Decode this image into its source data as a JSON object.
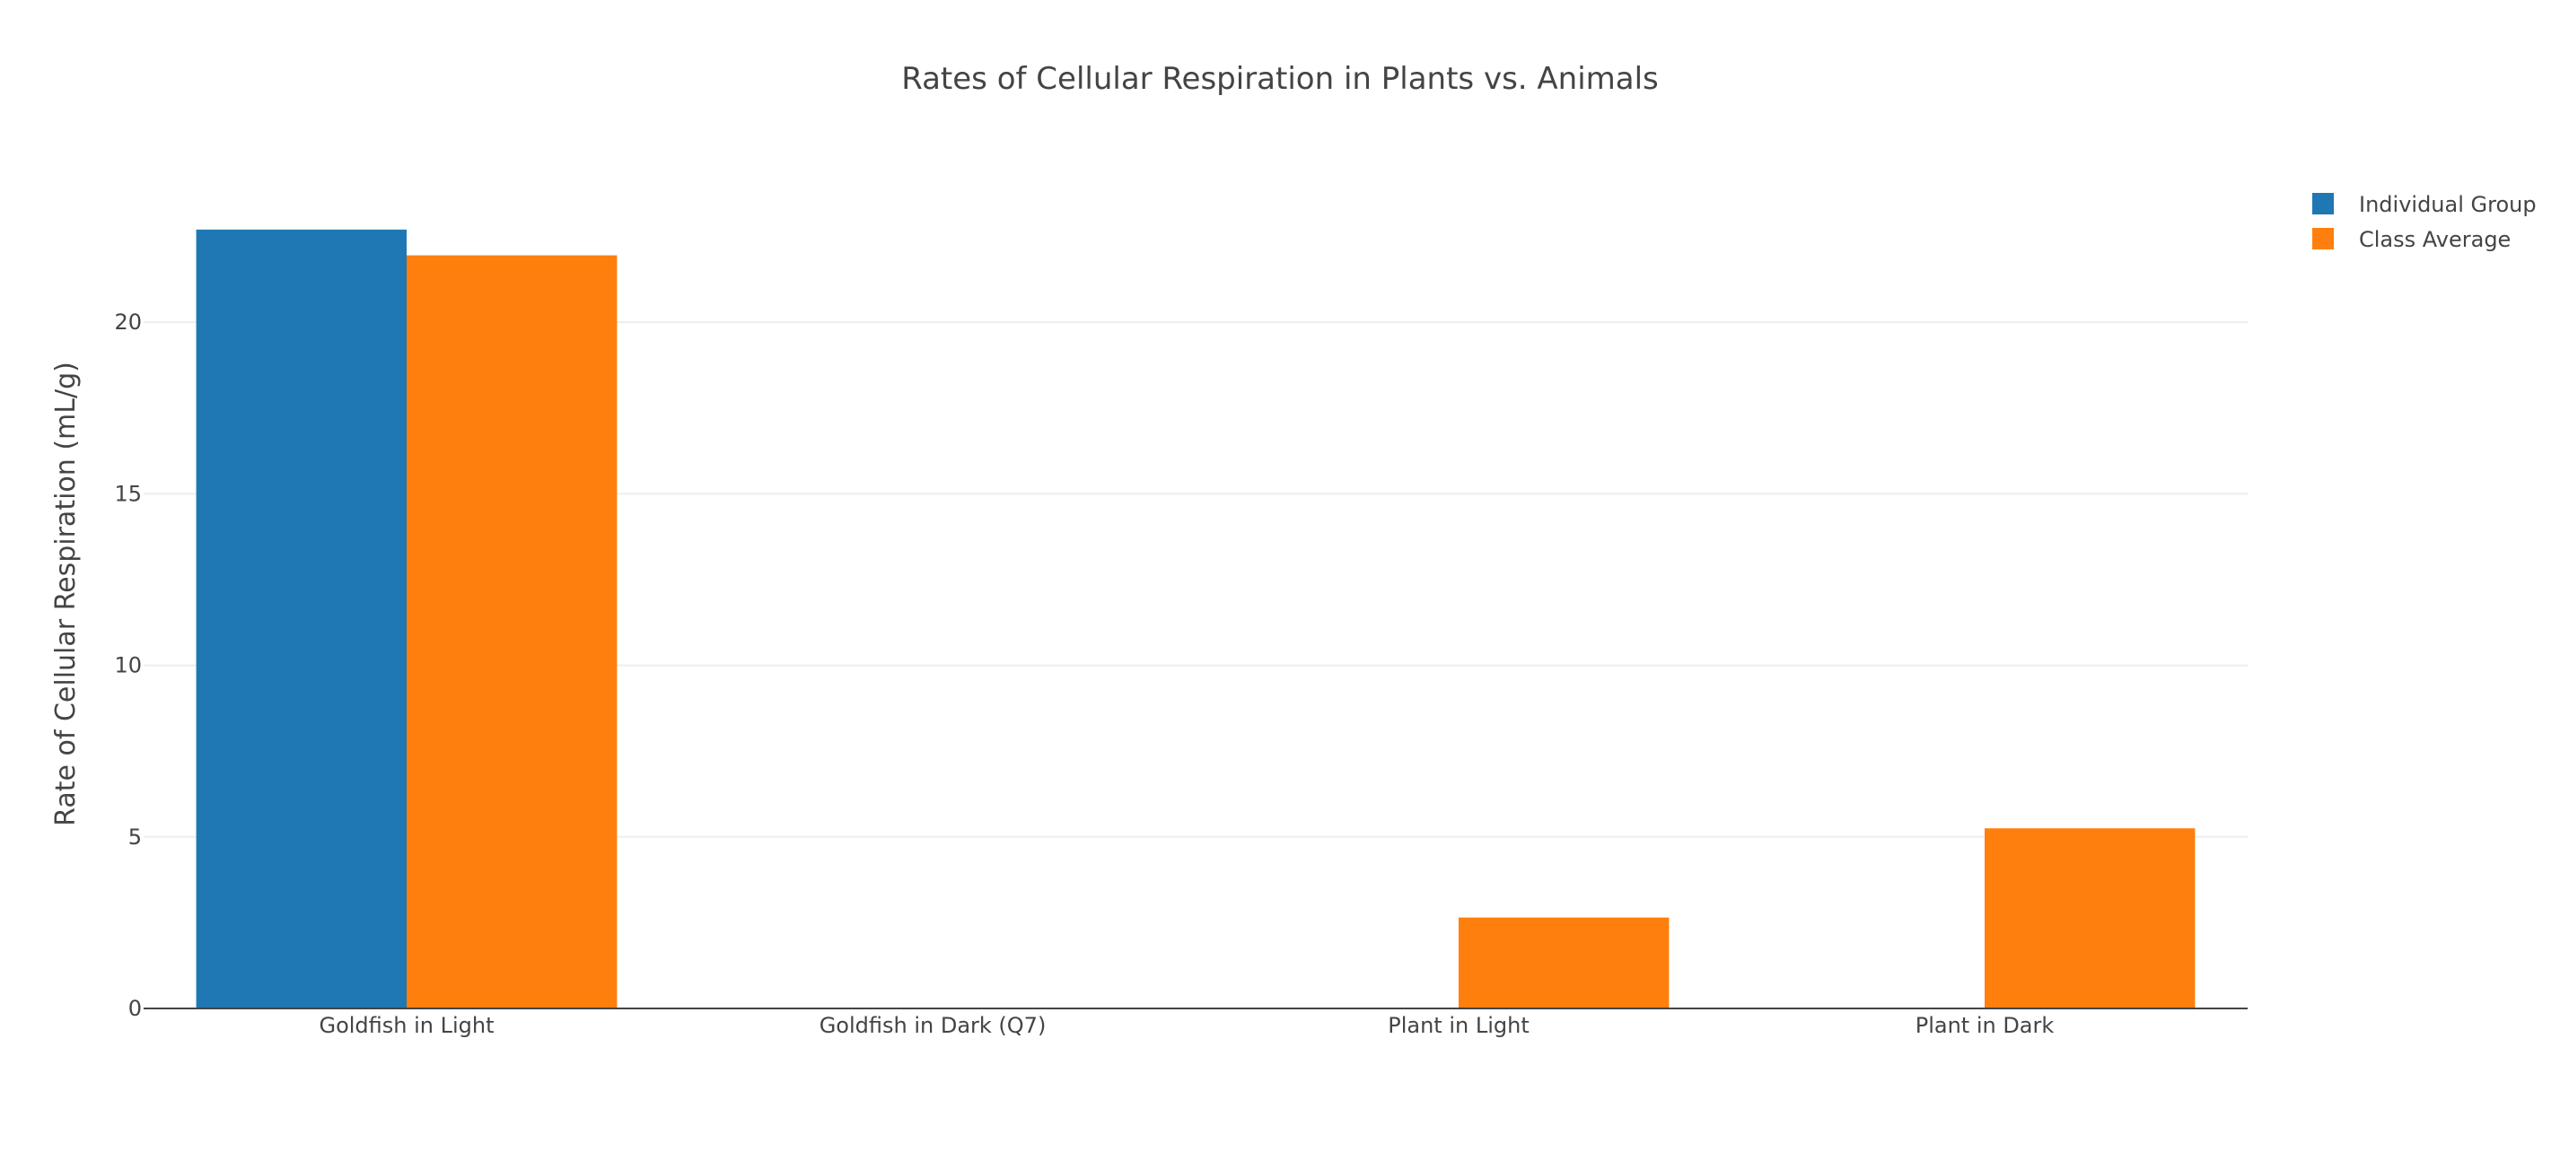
{
  "chart_data": {
    "type": "bar",
    "title": "Rates of Cellular Respiration in Plants vs. Animals",
    "xlabel": "",
    "ylabel": "Rate of Cellular Respiration (mL/g)",
    "categories": [
      "Goldfish in Light",
      "Goldfish in Dark (Q7)",
      "Plant in Light",
      "Plant in Dark"
    ],
    "series": [
      {
        "name": "Individual Group",
        "color": "#1f77b4",
        "values": [
          22.7,
          0,
          0,
          0
        ]
      },
      {
        "name": "Class Average",
        "color": "#ff7f0e",
        "values": [
          21.95,
          0,
          2.65,
          5.25
        ]
      }
    ],
    "ylim": [
      0,
      23.9
    ],
    "yticks": [
      0,
      5,
      10,
      15,
      20
    ],
    "grid": true,
    "legend_position": "top-right"
  }
}
